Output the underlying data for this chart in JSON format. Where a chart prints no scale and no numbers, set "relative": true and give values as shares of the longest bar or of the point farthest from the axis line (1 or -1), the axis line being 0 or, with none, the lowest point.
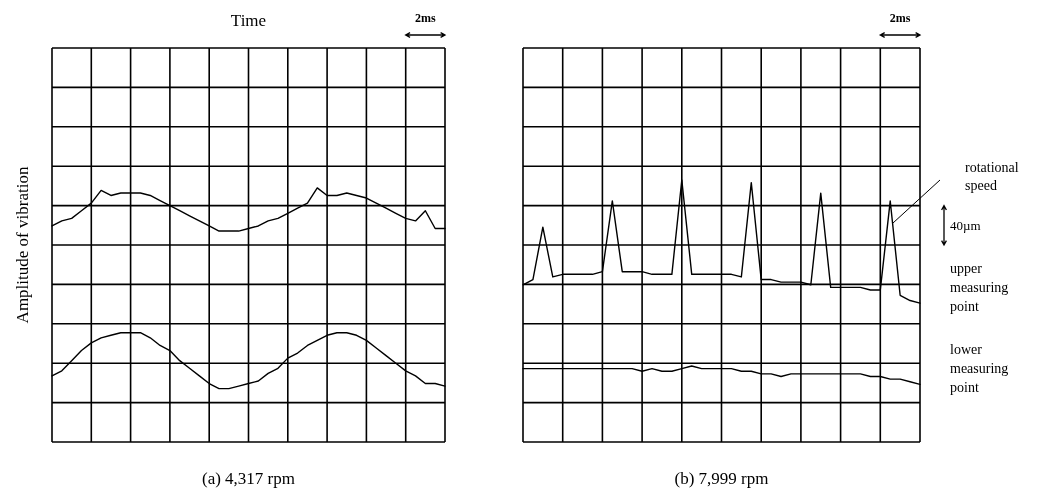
{
  "chart_data": [
    {
      "type": "line",
      "title": "(a) 4,317 rpm",
      "xlabel": "Time",
      "ylabel": "Amplitude of vibration",
      "relative": true,
      "grid": true,
      "annotations": [
        "2ms"
      ],
      "categories": [
        null,
        null,
        null,
        null,
        null,
        null,
        null,
        null,
        null,
        null,
        null,
        null,
        null,
        null,
        null,
        null,
        null,
        null,
        null,
        null,
        null,
        null,
        null,
        null,
        null,
        null,
        null,
        null,
        null,
        null,
        null,
        null,
        null,
        null,
        null,
        null,
        null,
        null,
        null,
        null,
        null
      ],
      "series": [
        {
          "color": "#000000",
          "values": [
            0.85,
            0.87,
            0.88,
            0.91,
            0.94,
            0.99,
            0.97,
            0.98,
            0.98,
            0.98,
            0.97,
            0.95,
            0.93,
            0.91,
            0.89,
            0.87,
            0.85,
            0.83,
            0.83,
            0.83,
            0.84,
            0.85,
            0.87,
            0.88,
            0.9,
            0.92,
            0.94,
            1,
            0.97,
            0.97,
            0.98,
            0.97,
            0.96,
            0.94,
            0.92,
            0.9,
            0.88,
            0.87,
            0.91,
            0.84,
            0.84
          ]
        },
        {
          "color": "#000000",
          "values": [
            0.26,
            0.28,
            0.32,
            0.36,
            0.39,
            0.41,
            0.42,
            0.43,
            0.43,
            0.43,
            0.41,
            0.38,
            0.36,
            0.32,
            0.29,
            0.26,
            0.23,
            0.21,
            0.21,
            0.22,
            0.23,
            0.24,
            0.27,
            0.29,
            0.33,
            0.35,
            0.38,
            0.4,
            0.42,
            0.43,
            0.43,
            0.42,
            0.4,
            0.37,
            0.34,
            0.31,
            0.28,
            0.26,
            0.23,
            0.23,
            0.22
          ]
        }
      ]
    },
    {
      "type": "line",
      "title": "(b) 7,999 rpm",
      "relative": true,
      "grid": true,
      "annotations": [
        "2ms",
        "40µm",
        "rotational speed"
      ],
      "categories": [
        null,
        null,
        null,
        null,
        null,
        null,
        null,
        null,
        null,
        null,
        null,
        null,
        null,
        null,
        null,
        null,
        null,
        null,
        null,
        null,
        null,
        null,
        null,
        null,
        null,
        null,
        null,
        null,
        null,
        null,
        null,
        null,
        null,
        null,
        null,
        null,
        null,
        null,
        null,
        null,
        null
      ],
      "series": [
        {
          "name": "upper measuring point",
          "color": "#000000",
          "values": [
            0.6,
            0.62,
            0.82,
            0.63,
            0.64,
            0.64,
            0.64,
            0.64,
            0.65,
            0.92,
            0.65,
            0.65,
            0.65,
            0.64,
            0.64,
            0.64,
            1,
            0.64,
            0.64,
            0.64,
            0.64,
            0.64,
            0.63,
            0.99,
            0.62,
            0.62,
            0.61,
            0.61,
            0.61,
            0.6,
            0.95,
            0.59,
            0.59,
            0.59,
            0.59,
            0.58,
            0.58,
            0.92,
            0.56,
            0.54,
            0.53
          ]
        },
        {
          "name": "lower measuring point",
          "color": "#000000",
          "values": [
            0.28,
            0.28,
            0.28,
            0.28,
            0.28,
            0.28,
            0.28,
            0.28,
            0.28,
            0.28,
            0.28,
            0.28,
            0.27,
            0.28,
            0.27,
            0.27,
            0.28,
            0.29,
            0.28,
            0.28,
            0.28,
            0.28,
            0.27,
            0.27,
            0.26,
            0.26,
            0.25,
            0.26,
            0.26,
            0.26,
            0.26,
            0.26,
            0.26,
            0.26,
            0.26,
            0.25,
            0.25,
            0.24,
            0.24,
            0.23,
            0.22
          ]
        }
      ]
    }
  ]
}
